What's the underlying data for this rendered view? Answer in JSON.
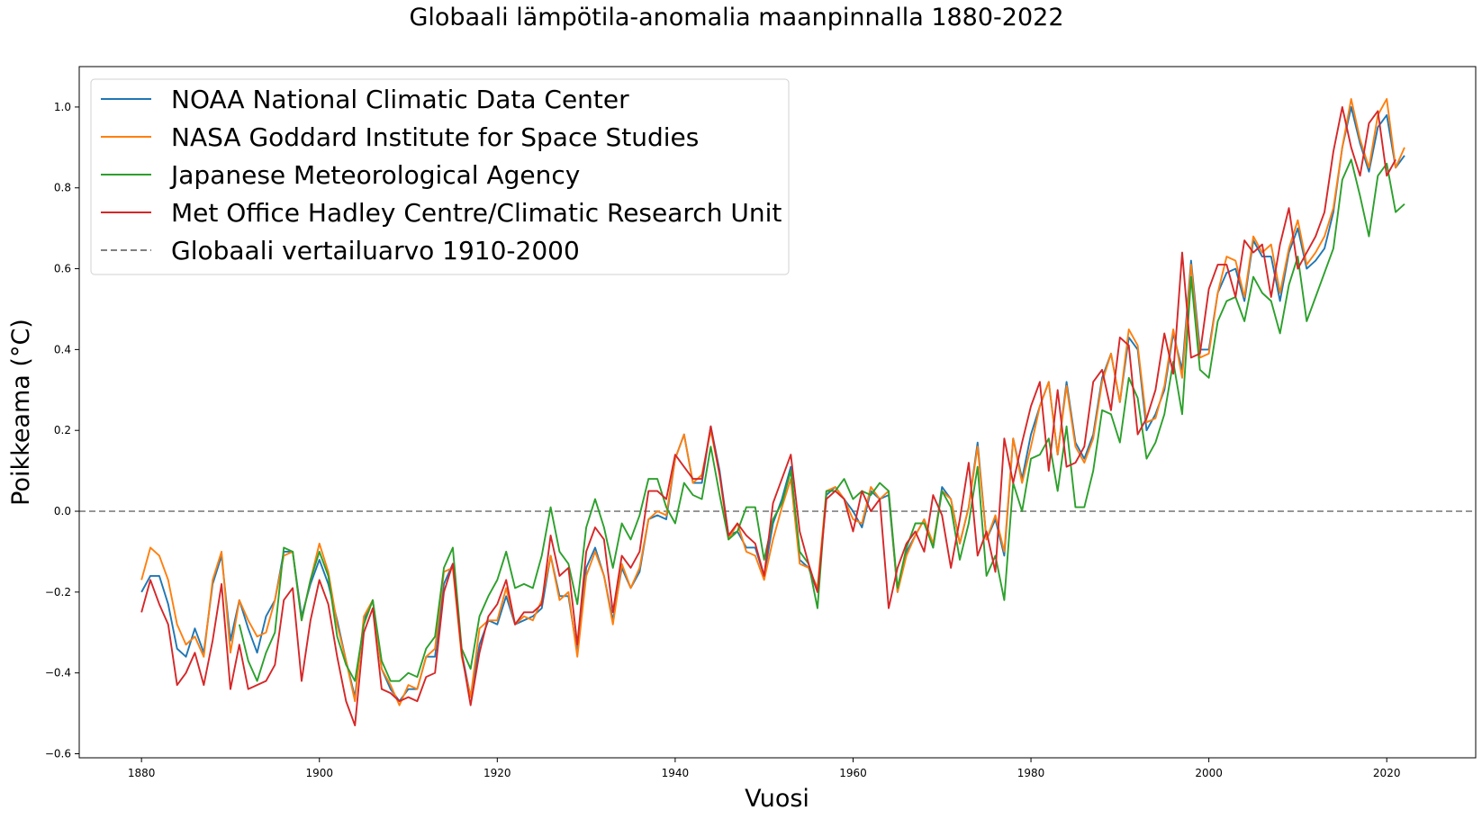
{
  "chart_data": {
    "type": "line",
    "title": "Globaali lämpötila-anomalia maanpinnalla 1880-2022",
    "xlabel": "Vuosi",
    "ylabel": "Poikkeama (°C)",
    "xlim": [
      1873,
      2030
    ],
    "ylim": [
      -0.61,
      1.1
    ],
    "xticks": [
      1880,
      1900,
      1920,
      1940,
      1960,
      1980,
      2000,
      2020
    ],
    "yticks": [
      -0.6,
      -0.4,
      -0.2,
      0.0,
      0.2,
      0.4,
      0.6,
      0.8,
      1.0
    ],
    "ytick_labels": [
      "−0.6",
      "−0.4",
      "−0.2",
      "0.0",
      "0.2",
      "0.4",
      "0.6",
      "0.8",
      "1.0"
    ],
    "grid": false,
    "legend_position": "upper-left",
    "x_start": 1880,
    "series": [
      {
        "name": "NOAA National Climatic Data Center",
        "color": "#1f77b4",
        "values": [
          -0.2,
          -0.16,
          -0.16,
          -0.23,
          -0.34,
          -0.36,
          -0.29,
          -0.35,
          -0.18,
          -0.11,
          -0.32,
          -0.22,
          -0.29,
          -0.35,
          -0.26,
          -0.22,
          -0.1,
          -0.1,
          -0.26,
          -0.18,
          -0.12,
          -0.18,
          -0.27,
          -0.37,
          -0.46,
          -0.27,
          -0.22,
          -0.39,
          -0.44,
          -0.47,
          -0.44,
          -0.44,
          -0.36,
          -0.36,
          -0.18,
          -0.13,
          -0.35,
          -0.46,
          -0.33,
          -0.27,
          -0.28,
          -0.21,
          -0.28,
          -0.27,
          -0.26,
          -0.24,
          -0.11,
          -0.21,
          -0.21,
          -0.35,
          -0.14,
          -0.09,
          -0.16,
          -0.27,
          -0.14,
          -0.19,
          -0.15,
          -0.02,
          -0.01,
          -0.02,
          0.13,
          0.19,
          0.07,
          0.07,
          0.21,
          0.1,
          -0.06,
          -0.05,
          -0.09,
          -0.09,
          -0.16,
          -0.03,
          0.03,
          0.11,
          -0.12,
          -0.14,
          -0.2,
          0.04,
          0.06,
          0.03,
          0.0,
          -0.04,
          0.05,
          0.03,
          0.04,
          -0.2,
          -0.1,
          -0.06,
          -0.02,
          -0.09,
          0.06,
          0.03,
          -0.08,
          0.01,
          0.17,
          -0.07,
          -0.02,
          -0.11,
          0.18,
          0.08,
          0.19,
          0.26,
          0.32,
          0.14,
          0.32,
          0.17,
          0.13,
          0.19,
          0.33,
          0.39,
          0.27,
          0.43,
          0.4,
          0.2,
          0.24,
          0.3,
          0.44,
          0.35,
          0.62,
          0.4,
          0.4,
          0.54,
          0.59,
          0.6,
          0.52,
          0.67,
          0.63,
          0.63,
          0.52,
          0.64,
          0.7,
          0.6,
          0.62,
          0.65,
          0.74,
          0.9,
          1.0,
          0.91,
          0.84,
          0.95,
          0.98,
          0.85,
          0.88
        ]
      },
      {
        "name": "NASA Goddard Institute for Space Studies",
        "color": "#ff7f0e",
        "values": [
          -0.17,
          -0.09,
          -0.11,
          -0.17,
          -0.28,
          -0.33,
          -0.31,
          -0.36,
          -0.17,
          -0.1,
          -0.35,
          -0.22,
          -0.27,
          -0.31,
          -0.3,
          -0.22,
          -0.11,
          -0.1,
          -0.27,
          -0.17,
          -0.08,
          -0.15,
          -0.28,
          -0.37,
          -0.47,
          -0.26,
          -0.22,
          -0.39,
          -0.43,
          -0.48,
          -0.43,
          -0.44,
          -0.36,
          -0.34,
          -0.15,
          -0.14,
          -0.36,
          -0.46,
          -0.29,
          -0.27,
          -0.27,
          -0.19,
          -0.28,
          -0.26,
          -0.27,
          -0.22,
          -0.11,
          -0.22,
          -0.2,
          -0.36,
          -0.16,
          -0.1,
          -0.16,
          -0.28,
          -0.13,
          -0.19,
          -0.14,
          -0.02,
          0.0,
          -0.01,
          0.13,
          0.19,
          0.07,
          0.09,
          0.2,
          0.09,
          -0.07,
          -0.03,
          -0.1,
          -0.11,
          -0.17,
          -0.07,
          0.01,
          0.08,
          -0.13,
          -0.14,
          -0.19,
          0.05,
          0.06,
          0.03,
          -0.02,
          -0.03,
          0.06,
          0.03,
          0.05,
          -0.2,
          -0.11,
          -0.06,
          -0.02,
          -0.08,
          0.05,
          0.03,
          -0.08,
          0.01,
          0.16,
          -0.07,
          -0.01,
          -0.1,
          0.18,
          0.07,
          0.16,
          0.26,
          0.32,
          0.14,
          0.31,
          0.16,
          0.12,
          0.18,
          0.32,
          0.39,
          0.27,
          0.45,
          0.41,
          0.22,
          0.23,
          0.31,
          0.45,
          0.33,
          0.61,
          0.38,
          0.39,
          0.54,
          0.63,
          0.62,
          0.53,
          0.68,
          0.64,
          0.66,
          0.54,
          0.65,
          0.72,
          0.61,
          0.64,
          0.68,
          0.75,
          0.9,
          1.02,
          0.92,
          0.85,
          0.98,
          1.02,
          0.85,
          0.9
        ]
      },
      {
        "name": "Japanese Meteorological Agency",
        "color": "#2ca02c",
        "values": [
          null,
          null,
          null,
          null,
          null,
          null,
          null,
          null,
          null,
          null,
          null,
          -0.28,
          -0.37,
          -0.42,
          -0.35,
          -0.3,
          -0.09,
          -0.1,
          -0.27,
          -0.17,
          -0.1,
          -0.16,
          -0.31,
          -0.38,
          -0.42,
          -0.28,
          -0.22,
          -0.37,
          -0.42,
          -0.42,
          -0.4,
          -0.41,
          -0.34,
          -0.31,
          -0.14,
          -0.09,
          -0.34,
          -0.39,
          -0.26,
          -0.21,
          -0.17,
          -0.1,
          -0.19,
          -0.18,
          -0.19,
          -0.11,
          0.01,
          -0.1,
          -0.13,
          -0.23,
          -0.04,
          0.03,
          -0.04,
          -0.14,
          -0.03,
          -0.07,
          -0.01,
          0.08,
          0.08,
          0.01,
          -0.03,
          0.07,
          0.04,
          0.03,
          0.16,
          0.04,
          -0.07,
          -0.05,
          0.01,
          0.01,
          -0.12,
          -0.02,
          0.02,
          0.1,
          -0.1,
          -0.13,
          -0.24,
          0.05,
          0.05,
          0.08,
          0.03,
          0.05,
          0.04,
          0.07,
          0.05,
          -0.19,
          -0.09,
          -0.03,
          -0.03,
          -0.09,
          0.05,
          0.01,
          -0.12,
          -0.03,
          0.11,
          -0.16,
          -0.11,
          -0.22,
          0.07,
          0.0,
          0.13,
          0.14,
          0.18,
          0.05,
          0.21,
          0.01,
          0.01,
          0.1,
          0.25,
          0.24,
          0.17,
          0.33,
          0.28,
          0.13,
          0.17,
          0.24,
          0.37,
          0.24,
          0.58,
          0.35,
          0.33,
          0.47,
          0.52,
          0.53,
          0.47,
          0.58,
          0.54,
          0.52,
          0.44,
          0.56,
          0.63,
          0.47,
          0.53,
          0.59,
          0.65,
          0.82,
          0.87,
          0.78,
          0.68,
          0.83,
          0.86,
          0.74,
          0.76
        ]
      },
      {
        "name": "Met Office Hadley Centre/Climatic Research Unit",
        "color": "#d62728",
        "values": [
          -0.25,
          -0.17,
          -0.23,
          -0.28,
          -0.43,
          -0.4,
          -0.35,
          -0.43,
          -0.32,
          -0.18,
          -0.44,
          -0.33,
          -0.44,
          -0.43,
          -0.42,
          -0.38,
          -0.22,
          -0.19,
          -0.42,
          -0.27,
          -0.17,
          -0.23,
          -0.36,
          -0.47,
          -0.53,
          -0.3,
          -0.24,
          -0.44,
          -0.45,
          -0.47,
          -0.46,
          -0.47,
          -0.41,
          -0.4,
          -0.2,
          -0.13,
          -0.35,
          -0.48,
          -0.35,
          -0.26,
          -0.23,
          -0.17,
          -0.28,
          -0.25,
          -0.25,
          -0.23,
          -0.06,
          -0.16,
          -0.14,
          -0.33,
          -0.1,
          -0.04,
          -0.07,
          -0.25,
          -0.11,
          -0.14,
          -0.1,
          0.05,
          0.05,
          0.03,
          0.14,
          0.11,
          0.08,
          0.08,
          0.21,
          0.09,
          -0.06,
          -0.03,
          -0.06,
          -0.08,
          -0.16,
          0.02,
          0.08,
          0.14,
          -0.05,
          -0.13,
          -0.2,
          0.03,
          0.05,
          0.03,
          -0.05,
          0.05,
          0.0,
          0.03,
          -0.24,
          -0.14,
          -0.08,
          -0.05,
          -0.1,
          0.04,
          -0.01,
          -0.14,
          -0.02,
          0.12,
          -0.11,
          -0.05,
          -0.15,
          0.18,
          0.07,
          0.17,
          0.26,
          0.32,
          0.1,
          0.3,
          0.11,
          0.12,
          0.16,
          0.32,
          0.35,
          0.25,
          0.43,
          0.41,
          0.19,
          0.23,
          0.3,
          0.44,
          0.34,
          0.64,
          0.38,
          0.39,
          0.55,
          0.61,
          0.61,
          0.53,
          0.67,
          0.64,
          0.66,
          0.53,
          0.66,
          0.75,
          0.6,
          0.64,
          0.68,
          0.74,
          0.89,
          1.0,
          0.9,
          0.83,
          0.96,
          0.99,
          0.83,
          0.87
        ]
      }
    ],
    "reference_line": {
      "name": "Globaali vertailuarvo 1910-2000",
      "color": "#808080",
      "y": 0.0
    }
  }
}
